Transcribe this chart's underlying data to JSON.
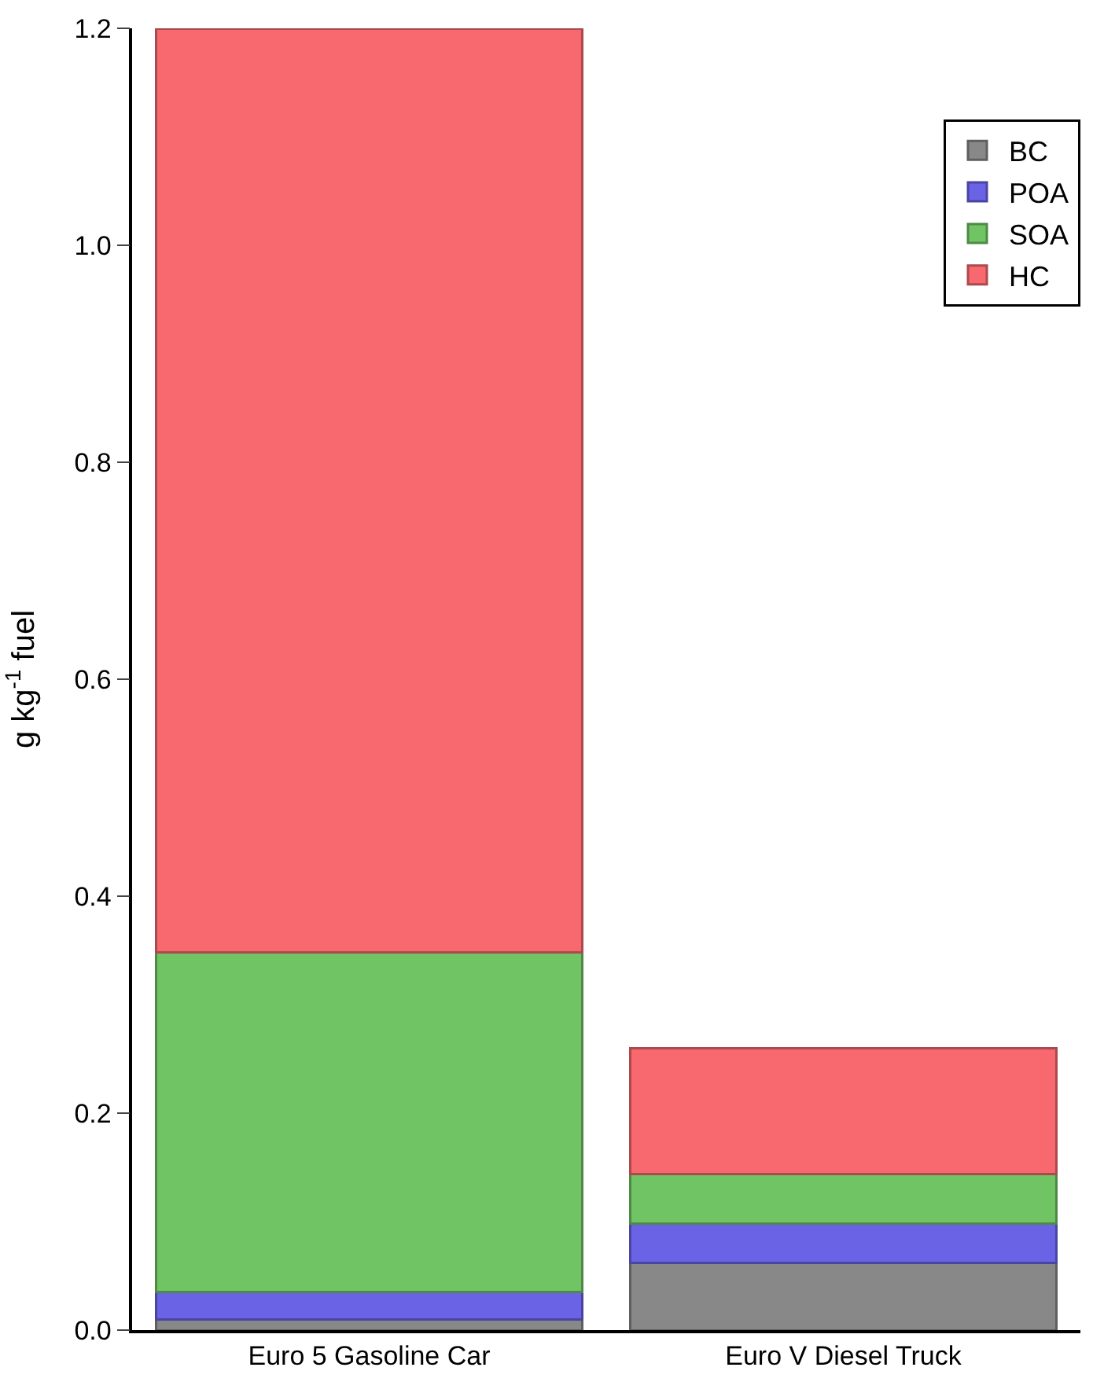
{
  "chart_data": {
    "type": "bar",
    "stacked": true,
    "ylabel": "g kg$^{-1}$ fuel",
    "categories": [
      "Euro 5 Gasoline Car",
      "Euro V Diesel Truck"
    ],
    "series": [
      {
        "name": "BC",
        "color": "#888888",
        "values": [
          0.01,
          0.062
        ]
      },
      {
        "name": "POA",
        "color": "#6b63e6",
        "values": [
          0.025,
          0.036
        ]
      },
      {
        "name": "SOA",
        "color": "#70c464",
        "values": [
          0.313,
          0.046
        ]
      },
      {
        "name": "HC",
        "color": "#f7696e",
        "values": [
          0.852,
          0.116
        ]
      }
    ],
    "ylim": [
      0,
      1.2
    ],
    "yticks": [
      {
        "value": 0,
        "label": "0.0"
      },
      {
        "value": 0.2,
        "label": "0.2"
      },
      {
        "value": 0.4,
        "label": "0.4"
      },
      {
        "value": 0.6,
        "label": "0.6"
      },
      {
        "value": 0.8,
        "label": "0.8"
      },
      {
        "value": 1.0,
        "label": "1.0"
      },
      {
        "value": 1.2,
        "label": "1.2"
      }
    ],
    "legend": "top right"
  }
}
